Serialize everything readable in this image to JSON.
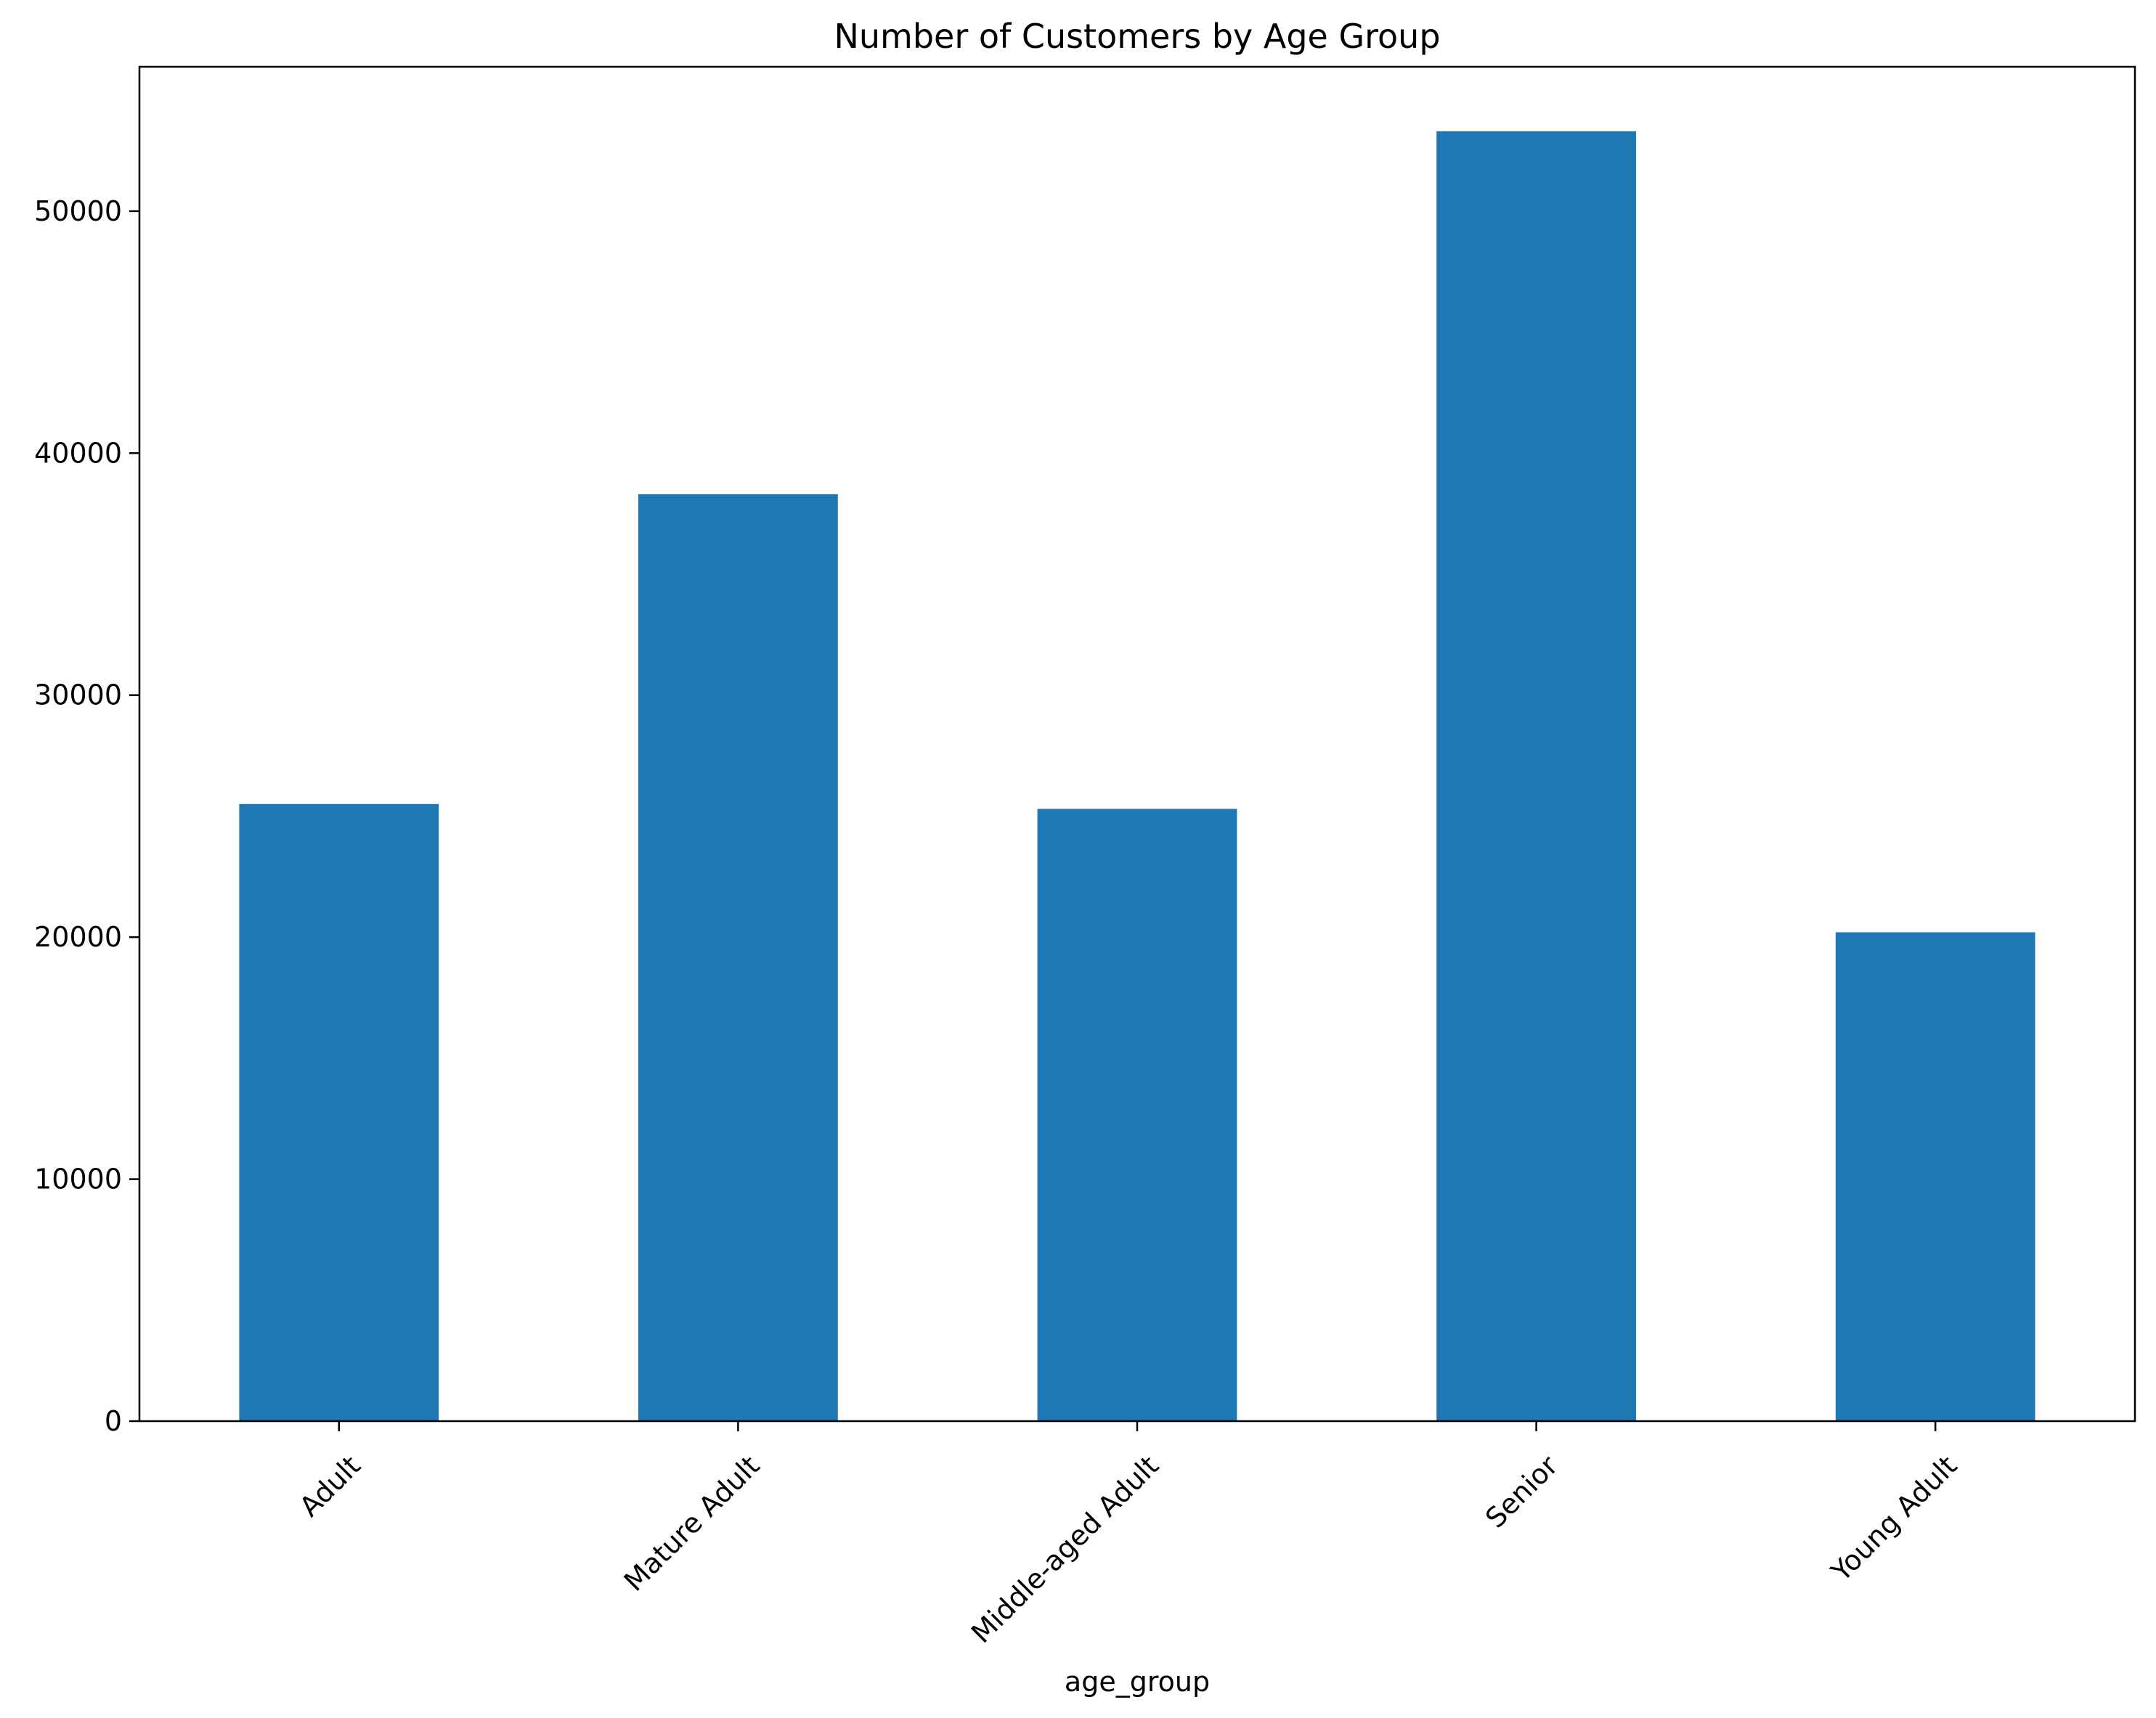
{
  "chart_data": {
    "type": "bar",
    "title": "Number of Customers by Age Group",
    "xlabel": "age_group",
    "ylabel": "",
    "categories": [
      "Adult",
      "Mature Adult",
      "Middle-aged Adult",
      "Senior",
      "Young Adult"
    ],
    "values": [
      25500,
      38300,
      25300,
      53300,
      20200
    ],
    "ylim": [
      0,
      55965
    ],
    "yticks": [
      0,
      10000,
      20000,
      30000,
      40000,
      50000
    ],
    "ytick_labels": [
      "0",
      "10000",
      "20000",
      "30000",
      "40000",
      "50000"
    ],
    "grid": false,
    "legend": "none",
    "colors": {
      "bar": "#1f77b4",
      "axis": "#000000",
      "background": "#ffffff"
    }
  }
}
